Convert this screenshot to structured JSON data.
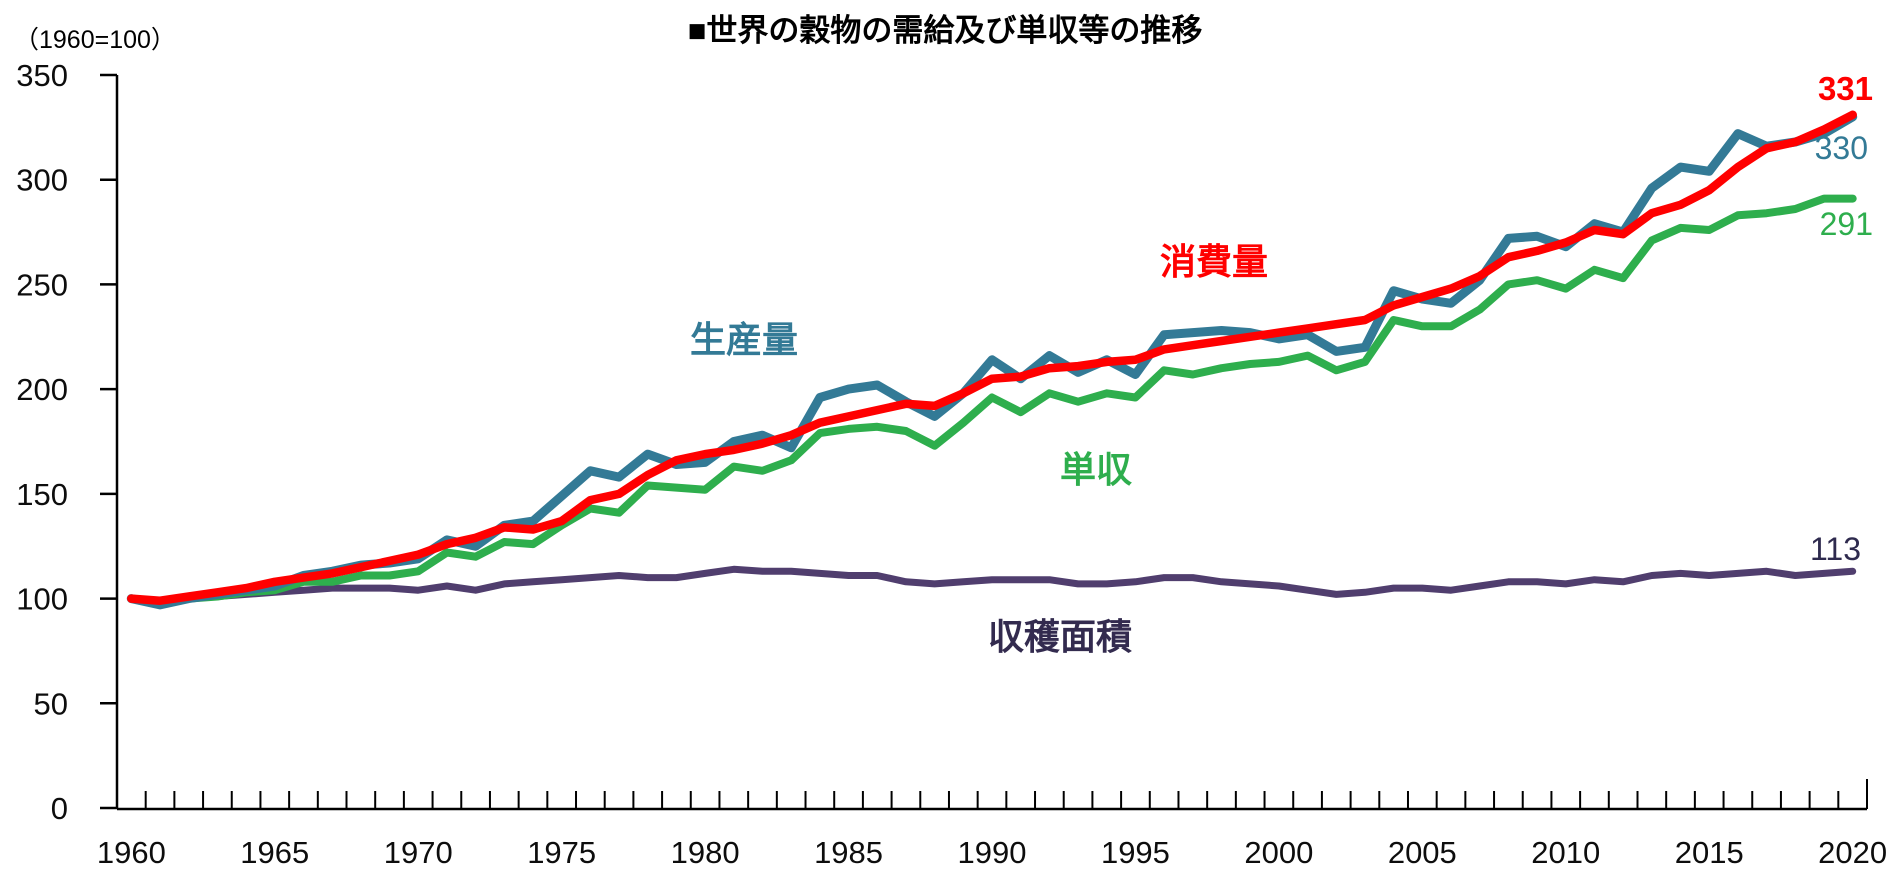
{
  "title": "■世界の穀物の需給及び単収等の推移",
  "unit_label": "（1960=100）",
  "chart_data": {
    "type": "line",
    "title": "■世界の穀物の需給及び単収等の推移",
    "index_note": "1960=100",
    "x": [
      1960,
      1961,
      1962,
      1963,
      1964,
      1965,
      1966,
      1967,
      1968,
      1969,
      1970,
      1971,
      1972,
      1973,
      1974,
      1975,
      1976,
      1977,
      1978,
      1979,
      1980,
      1981,
      1982,
      1983,
      1984,
      1985,
      1986,
      1987,
      1988,
      1989,
      1990,
      1991,
      1992,
      1993,
      1994,
      1995,
      1996,
      1997,
      1998,
      1999,
      2000,
      2001,
      2002,
      2003,
      2004,
      2005,
      2006,
      2007,
      2008,
      2009,
      2010,
      2011,
      2012,
      2013,
      2014,
      2015,
      2016,
      2017,
      2018,
      2019,
      2020
    ],
    "x_tick_labels": [
      "1960",
      "1965",
      "1970",
      "1975",
      "1980",
      "1985",
      "1990",
      "1995",
      "2000",
      "2005",
      "2010",
      "2015",
      "2020"
    ],
    "y_ticks": [
      "0",
      "50",
      "100",
      "150",
      "200",
      "250",
      "300",
      "350"
    ],
    "ylim": [
      0,
      350
    ],
    "grid": false,
    "legend_position": "inline-annotations",
    "series": [
      {
        "name": "生産量",
        "color": "#337a96",
        "end_label": "330",
        "values": [
          100,
          97,
          100,
          102,
          104,
          106,
          111,
          113,
          116,
          117,
          119,
          128,
          125,
          135,
          137,
          149,
          161,
          158,
          169,
          164,
          165,
          175,
          178,
          172,
          196,
          200,
          202,
          194,
          187,
          198,
          214,
          205,
          216,
          208,
          214,
          207,
          226,
          227,
          228,
          227,
          224,
          226,
          218,
          220,
          247,
          243,
          241,
          252,
          272,
          273,
          268,
          279,
          275,
          296,
          306,
          304,
          322,
          316,
          318,
          322,
          330
        ]
      },
      {
        "name": "消費量",
        "color": "#ff0000",
        "end_label": "331",
        "values": [
          100,
          99,
          101,
          103,
          105,
          108,
          110,
          112,
          115,
          118,
          121,
          126,
          129,
          134,
          133,
          137,
          147,
          150,
          159,
          166,
          169,
          171,
          174,
          178,
          184,
          187,
          190,
          193,
          192,
          198,
          205,
          206,
          210,
          211,
          213,
          214,
          219,
          221,
          223,
          225,
          227,
          229,
          231,
          233,
          240,
          244,
          248,
          254,
          263,
          266,
          270,
          276,
          274,
          284,
          288,
          295,
          306,
          315,
          318,
          324,
          331
        ]
      },
      {
        "name": "単収",
        "color": "#2eae4d",
        "end_label": "291",
        "values": [
          100,
          98,
          100,
          101,
          103,
          104,
          108,
          108,
          111,
          111,
          113,
          122,
          120,
          127,
          126,
          135,
          143,
          141,
          154,
          153,
          152,
          163,
          161,
          166,
          179,
          181,
          182,
          180,
          173,
          184,
          196,
          189,
          198,
          194,
          198,
          196,
          209,
          207,
          210,
          212,
          213,
          216,
          209,
          213,
          233,
          230,
          230,
          238,
          250,
          252,
          248,
          257,
          253,
          271,
          277,
          276,
          283,
          284,
          286,
          291,
          291
        ]
      },
      {
        "name": "収穫面積",
        "color": "#503e6e",
        "label_color": "#332b4f",
        "end_label": "113",
        "values": [
          100,
          99,
          100,
          101,
          102,
          103,
          104,
          105,
          105,
          105,
          104,
          106,
          104,
          107,
          108,
          109,
          110,
          111,
          110,
          110,
          112,
          114,
          113,
          113,
          112,
          111,
          111,
          108,
          107,
          108,
          109,
          109,
          109,
          107,
          107,
          108,
          110,
          110,
          108,
          107,
          106,
          104,
          102,
          103,
          105,
          105,
          104,
          106,
          108,
          108,
          107,
          109,
          108,
          111,
          112,
          111,
          112,
          113,
          111,
          112,
          113
        ]
      }
    ]
  }
}
